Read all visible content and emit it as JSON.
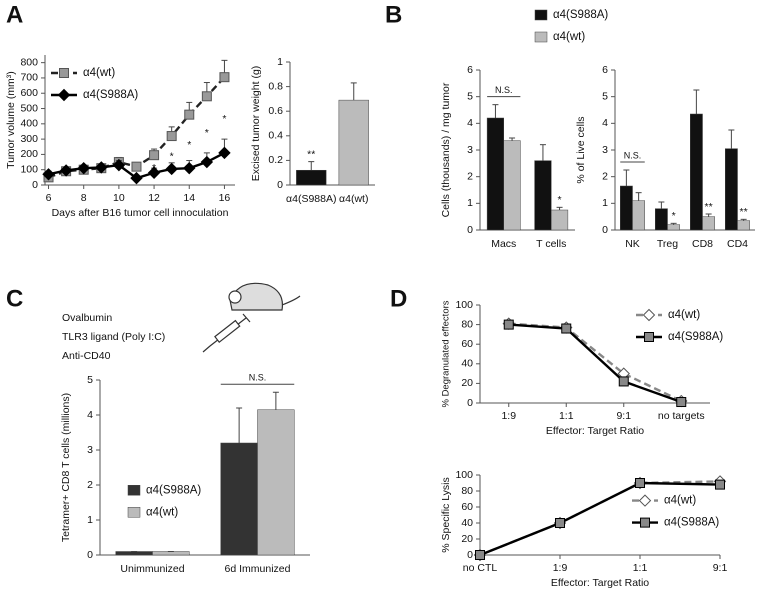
{
  "panel_labels": [
    "A",
    "B",
    "C",
    "D"
  ],
  "chart_data": [
    {
      "type": "line",
      "ylabel": "Tumor volume (mm³)",
      "xlabel": "Days after B16 tumor cell innoculation",
      "x": [
        6,
        7,
        8,
        9,
        10,
        11,
        12,
        13,
        14,
        15,
        16
      ],
      "xlim": [
        5.8,
        16.6
      ],
      "xticks": [
        6,
        8,
        10,
        12,
        14,
        16
      ],
      "ylim": [
        0,
        850
      ],
      "yticks": [
        0,
        100,
        200,
        300,
        400,
        500,
        600,
        700,
        800
      ],
      "legend": "upper left",
      "series": [
        {
          "name": "α4(wt)",
          "color": "#222",
          "marker": "square",
          "marker_color": "#999",
          "dash": true,
          "values": [
            50,
            90,
            100,
            110,
            150,
            120,
            195,
            320,
            460,
            580,
            705
          ],
          "errors": [
            25,
            20,
            20,
            20,
            30,
            20,
            40,
            60,
            80,
            90,
            110
          ],
          "notes": [
            null,
            null,
            null,
            null,
            null,
            null,
            "*",
            "*",
            "*",
            "*",
            "*"
          ]
        },
        {
          "name": "α4(S988A)",
          "color": "#000",
          "marker": "diamond",
          "marker_color": "#000",
          "values": [
            70,
            95,
            110,
            115,
            130,
            45,
            80,
            105,
            110,
            150,
            210
          ],
          "errors": [
            20,
            20,
            20,
            20,
            30,
            20,
            30,
            40,
            50,
            60,
            90
          ]
        }
      ]
    },
    {
      "type": "bar",
      "ylabel": "Excised tumor weight (g)",
      "categories": [
        "α4(S988A)",
        "α4(wt)"
      ],
      "values": [
        0.12,
        0.69
      ],
      "errors": [
        0.07,
        0.14
      ],
      "colors": [
        "#111",
        "#bbb"
      ],
      "notes": [
        "**",
        null
      ],
      "ylim": [
        0,
        1
      ],
      "yticks": [
        0,
        0.2,
        0.4,
        0.6,
        0.8,
        1
      ]
    },
    {
      "type": "bar",
      "ylabel": "Cells (thousands) / mg tumor",
      "categories": [
        "Macs",
        "T cells"
      ],
      "ylim": [
        0,
        6
      ],
      "yticks": [
        0,
        1,
        2,
        3,
        4,
        5,
        6
      ],
      "legend": "above",
      "group_notes": [
        "N.S.",
        null
      ],
      "series": [
        {
          "name": "α4(S988A)",
          "color": "#111",
          "values": [
            4.2,
            2.6
          ],
          "errors": [
            0.5,
            0.6
          ]
        },
        {
          "name": "α4(wt)",
          "color": "#bbb",
          "values": [
            3.35,
            0.75
          ],
          "errors": [
            0.1,
            0.1
          ],
          "notes": [
            null,
            "*"
          ]
        }
      ]
    },
    {
      "type": "bar",
      "ylabel": "% of Live cells",
      "categories": [
        "NK",
        "Treg",
        "CD8",
        "CD4"
      ],
      "ylim": [
        0,
        6
      ],
      "yticks": [
        0,
        1,
        2,
        3,
        4,
        5,
        6
      ],
      "group_notes": [
        "N.S.",
        null,
        null,
        null
      ],
      "series": [
        {
          "color": "#111",
          "values": [
            1.65,
            0.8,
            4.35,
            3.05
          ],
          "errors": [
            0.6,
            0.25,
            0.9,
            0.7
          ]
        },
        {
          "color": "#bbb",
          "values": [
            1.1,
            0.2,
            0.5,
            0.35
          ],
          "errors": [
            0.3,
            0.05,
            0.1,
            0.05
          ],
          "notes": [
            null,
            "*",
            "**",
            "**"
          ]
        }
      ]
    },
    {
      "type": "bar",
      "ylabel": "Tetramer+ CD8 T cells (millions)",
      "categories": [
        "Unimmunized",
        "6d Immunized"
      ],
      "treatment": [
        "Ovalbumin",
        "TLR3 ligand (Poly I:C)",
        "Anti-CD40"
      ],
      "ylim": [
        0,
        5
      ],
      "yticks": [
        0,
        1,
        2,
        3,
        4,
        5
      ],
      "legend": "center left",
      "group_notes": [
        null,
        "N.S."
      ],
      "series": [
        {
          "name": "α4(S988A)",
          "color": "#333",
          "values": [
            0.1,
            3.2
          ],
          "errors": [
            0,
            1
          ]
        },
        {
          "name": "α4(wt)",
          "color": "#bbb",
          "values": [
            0.1,
            4.15
          ],
          "errors": [
            0,
            0.5
          ]
        }
      ]
    },
    {
      "type": "line",
      "ylabel": "% Degranulated effectors",
      "xlabel": "Effector: Target Ratio",
      "categories": [
        "1:9",
        "1:1",
        "9:1",
        "no targets"
      ],
      "spacing": "band",
      "ylim": [
        0,
        100
      ],
      "yticks": [
        0,
        20,
        40,
        60,
        80,
        100
      ],
      "legend": "upper right",
      "series": [
        {
          "name": "α4(wt)",
          "color": "#888",
          "marker": "open-diamond",
          "marker_color": "#fff",
          "dash": true,
          "values": [
            81,
            77,
            30,
            2
          ]
        },
        {
          "name": "α4(S988A)",
          "color": "#000",
          "marker": "square",
          "marker_color": "#888",
          "values": [
            80,
            76,
            22,
            1
          ]
        }
      ]
    },
    {
      "type": "line",
      "ylabel": "% Specific Lysis",
      "xlabel": "Effector: Target Ratio",
      "categories": [
        "no CTL",
        "1:9",
        "1:1",
        "9:1"
      ],
      "spacing": "edge",
      "ylim": [
        0,
        100
      ],
      "yticks": [
        0,
        20,
        40,
        60,
        80,
        100
      ],
      "legend": "center right",
      "series": [
        {
          "name": "α4(wt)",
          "color": "#888",
          "marker": "open-diamond",
          "marker_color": "#fff",
          "dash": true,
          "values": [
            0,
            40,
            90,
            92
          ]
        },
        {
          "name": "α4(S988A)",
          "color": "#000",
          "marker": "square",
          "marker_color": "#888",
          "values": [
            0,
            40,
            90,
            88
          ]
        }
      ]
    }
  ]
}
